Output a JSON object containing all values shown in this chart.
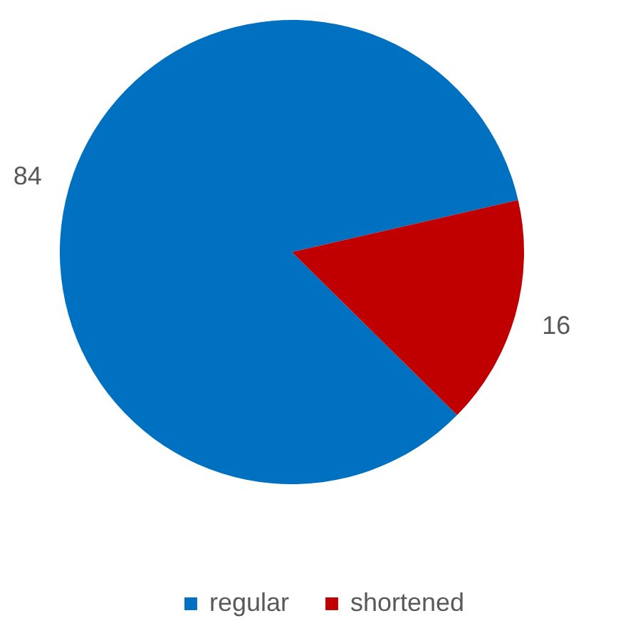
{
  "chart_data": {
    "type": "pie",
    "categories": [
      "regular",
      "shortened"
    ],
    "values": [
      84,
      16
    ],
    "colors": [
      "#0070c0",
      "#c00000"
    ],
    "data_labels": true,
    "legend": "bottom"
  }
}
